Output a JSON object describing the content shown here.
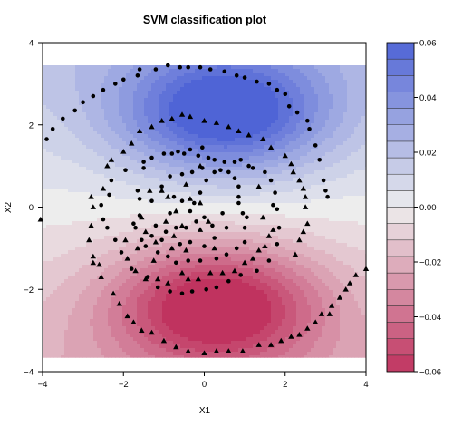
{
  "chart_data": {
    "type": "scatter",
    "title": "SVM classification plot",
    "xlabel": "X1",
    "ylabel": "X2",
    "xlim": [
      -4,
      4
    ],
    "ylim": [
      -4,
      4
    ],
    "xticks": [
      -4,
      -2,
      0,
      2,
      4
    ],
    "yticks": [
      -4,
      -2,
      0,
      2,
      4
    ],
    "background": {
      "type": "decision-function-heatmap",
      "x_range": [
        -4,
        4
      ],
      "y_range": [
        -3.65,
        3.45
      ],
      "positive_color": "#4f64d6",
      "neutral_color": "#ededed",
      "negative_color": "#c0335f",
      "blue_center": [
        0.5,
        2.3
      ],
      "red_center": [
        0.3,
        -2.4
      ]
    },
    "colorbar": {
      "min": -0.06,
      "max": 0.06,
      "ticks": [
        -0.06,
        -0.04,
        -0.02,
        0.0,
        0.02,
        0.04,
        0.06
      ],
      "tick_labels": [
        "−0.06",
        "−0.04",
        "−0.02",
        "0.00",
        "0.02",
        "0.04",
        "0.06"
      ],
      "levels": 20
    },
    "series": [
      {
        "marker": "circle",
        "color": "#000000",
        "points": [
          [
            -3.9,
            1.65
          ],
          [
            -3.75,
            1.9
          ],
          [
            -3.5,
            2.15
          ],
          [
            -3.2,
            2.35
          ],
          [
            -3.0,
            2.55
          ],
          [
            -2.75,
            2.7
          ],
          [
            -2.5,
            2.85
          ],
          [
            -2.2,
            3.0
          ],
          [
            -2.0,
            3.1
          ],
          [
            -1.65,
            3.2
          ],
          [
            -1.6,
            3.35
          ],
          [
            -1.2,
            3.35
          ],
          [
            -0.9,
            3.45
          ],
          [
            -0.6,
            3.4
          ],
          [
            -0.4,
            3.4
          ],
          [
            -0.1,
            3.4
          ],
          [
            0.15,
            3.35
          ],
          [
            0.5,
            3.3
          ],
          [
            0.8,
            3.2
          ],
          [
            1.0,
            3.15
          ],
          [
            1.3,
            3.05
          ],
          [
            1.6,
            3.0
          ],
          [
            1.8,
            2.85
          ],
          [
            2.0,
            2.75
          ],
          [
            2.1,
            2.45
          ],
          [
            2.3,
            2.3
          ],
          [
            2.55,
            2.1
          ],
          [
            2.6,
            1.9
          ],
          [
            2.75,
            1.5
          ],
          [
            2.85,
            1.15
          ],
          [
            2.95,
            0.65
          ],
          [
            3.0,
            0.4
          ],
          [
            3.05,
            0.25
          ],
          [
            -1.95,
            0.9
          ],
          [
            -1.5,
            0.95
          ],
          [
            -1.5,
            1.1
          ],
          [
            -1.3,
            1.2
          ],
          [
            -1.0,
            1.3
          ],
          [
            -0.8,
            1.3
          ],
          [
            -0.65,
            1.35
          ],
          [
            -0.5,
            1.3
          ],
          [
            -0.35,
            1.4
          ],
          [
            -0.05,
            1.45
          ],
          [
            -0.15,
            1.25
          ],
          [
            0.1,
            1.2
          ],
          [
            0.25,
            1.15
          ],
          [
            0.5,
            1.1
          ],
          [
            0.75,
            1.1
          ],
          [
            0.9,
            1.15
          ],
          [
            1.1,
            1.0
          ],
          [
            1.2,
            0.95
          ],
          [
            1.5,
            0.85
          ],
          [
            1.65,
            0.65
          ],
          [
            1.75,
            0.35
          ],
          [
            1.7,
            0.05
          ],
          [
            1.8,
            -0.05
          ],
          [
            1.85,
            -0.5
          ],
          [
            1.8,
            -0.9
          ],
          [
            1.6,
            -1.3
          ],
          [
            1.3,
            -1.55
          ],
          [
            0.9,
            -1.65
          ],
          [
            0.6,
            -1.8
          ],
          [
            0.3,
            -1.95
          ],
          [
            0.05,
            -2.0
          ],
          [
            -0.3,
            -2.05
          ],
          [
            -0.55,
            -2.1
          ],
          [
            -0.85,
            -2.05
          ],
          [
            -1.15,
            -1.95
          ],
          [
            -1.4,
            -1.7
          ],
          [
            -1.8,
            -1.5
          ],
          [
            -2.05,
            -1.1
          ],
          [
            -2.2,
            -0.8
          ],
          [
            -2.4,
            -0.5
          ],
          [
            -2.5,
            -0.3
          ],
          [
            -2.55,
            0.05
          ],
          [
            -2.35,
            0.3
          ],
          [
            -2.3,
            0.65
          ],
          [
            -1.65,
            0.4
          ],
          [
            -1.6,
            0.2
          ],
          [
            -1.6,
            -0.2
          ],
          [
            -1.75,
            -0.4
          ],
          [
            -1.7,
            -0.5
          ],
          [
            -1.55,
            -0.8
          ],
          [
            -1.45,
            -0.95
          ],
          [
            -1.15,
            -1.1
          ],
          [
            -0.9,
            -1.2
          ],
          [
            -0.7,
            -1.35
          ],
          [
            -0.4,
            -1.3
          ],
          [
            -0.1,
            -1.3
          ],
          [
            0.3,
            -1.25
          ],
          [
            0.55,
            -1.15
          ],
          [
            0.8,
            -1.0
          ],
          [
            1.0,
            -0.85
          ],
          [
            1.0,
            -0.5
          ],
          [
            1.05,
            -0.25
          ],
          [
            0.95,
            -0.15
          ],
          [
            0.85,
            0.1
          ],
          [
            0.85,
            0.25
          ],
          [
            0.85,
            0.5
          ],
          [
            0.75,
            0.7
          ],
          [
            0.6,
            0.85
          ],
          [
            0.4,
            0.9
          ],
          [
            0.25,
            0.85
          ],
          [
            -0.05,
            0.95
          ],
          [
            -0.3,
            0.85
          ],
          [
            -0.55,
            0.8
          ],
          [
            -0.85,
            0.75
          ],
          [
            -1.05,
            0.5
          ],
          [
            -1.3,
            0.15
          ],
          [
            0.05,
            0.65
          ],
          [
            -0.1,
            0.35
          ],
          [
            -0.25,
            0.1
          ],
          [
            -0.35,
            -0.1
          ],
          [
            -0.55,
            0.15
          ],
          [
            -0.75,
            0.25
          ],
          [
            -0.85,
            -0.15
          ],
          [
            -0.95,
            -0.6
          ],
          [
            -0.7,
            -0.5
          ],
          [
            -0.45,
            -0.5
          ],
          [
            -0.2,
            -0.35
          ],
          [
            0.0,
            -0.25
          ],
          [
            0.2,
            -0.45
          ],
          [
            0.25,
            -0.75
          ],
          [
            0.0,
            -0.95
          ],
          [
            -0.35,
            -0.85
          ],
          [
            -0.6,
            -0.9
          ],
          [
            -1.2,
            -0.45
          ],
          [
            -1.3,
            -0.7
          ],
          [
            -1.05,
            -0.8
          ],
          [
            0.45,
            -0.15
          ],
          [
            0.55,
            -0.5
          ]
        ]
      },
      {
        "marker": "triangle",
        "color": "#000000",
        "points": [
          [
            -4.05,
            -0.3
          ],
          [
            4.0,
            -1.5
          ],
          [
            -2.4,
            1.0
          ],
          [
            -2.5,
            0.45
          ],
          [
            -2.8,
            0.25
          ],
          [
            -2.75,
            0.0
          ],
          [
            -2.8,
            -0.45
          ],
          [
            -2.85,
            -0.8
          ],
          [
            -2.75,
            -1.2
          ],
          [
            -2.75,
            -1.35
          ],
          [
            -2.6,
            -1.4
          ],
          [
            -2.55,
            -1.7
          ],
          [
            -2.25,
            -2.1
          ],
          [
            -2.1,
            -2.35
          ],
          [
            -1.9,
            -2.65
          ],
          [
            -1.75,
            -2.8
          ],
          [
            -1.55,
            -3.0
          ],
          [
            -1.3,
            -3.05
          ],
          [
            -1.0,
            -3.25
          ],
          [
            -0.7,
            -3.4
          ],
          [
            -0.4,
            -3.5
          ],
          [
            0.0,
            -3.55
          ],
          [
            0.3,
            -3.5
          ],
          [
            0.6,
            -3.5
          ],
          [
            0.95,
            -3.5
          ],
          [
            1.35,
            -3.35
          ],
          [
            1.65,
            -3.35
          ],
          [
            1.9,
            -3.25
          ],
          [
            2.15,
            -3.15
          ],
          [
            2.35,
            -3.1
          ],
          [
            2.55,
            -2.95
          ],
          [
            2.75,
            -2.8
          ],
          [
            2.9,
            -2.6
          ],
          [
            3.1,
            -2.6
          ],
          [
            3.15,
            -2.4
          ],
          [
            3.35,
            -2.2
          ],
          [
            3.5,
            -2.0
          ],
          [
            3.6,
            -1.85
          ],
          [
            3.75,
            -1.65
          ],
          [
            2.25,
            -1.15
          ],
          [
            2.35,
            -0.8
          ],
          [
            2.45,
            -0.6
          ],
          [
            2.55,
            -0.4
          ],
          [
            2.5,
            0.0
          ],
          [
            2.5,
            0.25
          ],
          [
            2.45,
            0.45
          ],
          [
            2.35,
            0.65
          ],
          [
            2.2,
            0.85
          ],
          [
            2.15,
            1.05
          ],
          [
            2.0,
            1.25
          ],
          [
            1.65,
            1.45
          ],
          [
            1.45,
            1.65
          ],
          [
            1.1,
            1.75
          ],
          [
            0.85,
            1.85
          ],
          [
            0.6,
            1.95
          ],
          [
            0.3,
            2.05
          ],
          [
            0.0,
            2.1
          ],
          [
            -0.35,
            2.2
          ],
          [
            -0.55,
            2.25
          ],
          [
            -0.8,
            2.15
          ],
          [
            -1.05,
            2.1
          ],
          [
            -1.3,
            1.95
          ],
          [
            -1.6,
            1.85
          ],
          [
            -1.8,
            1.55
          ],
          [
            -2.0,
            1.35
          ],
          [
            -2.3,
            1.15
          ],
          [
            -1.95,
            -0.8
          ],
          [
            -1.9,
            -1.25
          ],
          [
            -1.7,
            -1.55
          ],
          [
            -1.45,
            -1.75
          ],
          [
            -1.15,
            -1.75
          ],
          [
            -0.9,
            -1.85
          ],
          [
            -0.55,
            -1.6
          ],
          [
            -0.4,
            -1.75
          ],
          [
            -0.15,
            -1.75
          ],
          [
            0.15,
            -1.6
          ],
          [
            0.45,
            -1.6
          ],
          [
            0.75,
            -1.55
          ],
          [
            1.0,
            -1.35
          ],
          [
            1.2,
            -1.25
          ],
          [
            1.35,
            -1.05
          ],
          [
            1.5,
            -0.95
          ],
          [
            1.6,
            -0.7
          ],
          [
            1.7,
            -0.55
          ],
          [
            -1.65,
            -1.0
          ],
          [
            -1.55,
            -0.25
          ],
          [
            -1.35,
            0.4
          ],
          [
            -1.05,
            0.4
          ],
          [
            -0.9,
            0.25
          ],
          [
            -0.95,
            -0.35
          ],
          [
            -0.75,
            -0.7
          ],
          [
            -0.55,
            -0.45
          ],
          [
            -0.7,
            -0.1
          ],
          [
            -0.35,
            0.2
          ],
          [
            -0.1,
            0.1
          ],
          [
            0.1,
            -0.35
          ],
          [
            -0.1,
            -0.55
          ],
          [
            0.25,
            -1.0
          ],
          [
            -0.45,
            -1.05
          ],
          [
            -0.8,
            -1.0
          ],
          [
            -1.2,
            -0.85
          ],
          [
            -1.45,
            -0.6
          ],
          [
            -0.45,
            0.55
          ],
          [
            -0.1,
            1.0
          ],
          [
            1.35,
            0.5
          ],
          [
            1.45,
            -0.25
          ],
          [
            -1.25,
            -1.3
          ]
        ]
      }
    ]
  }
}
